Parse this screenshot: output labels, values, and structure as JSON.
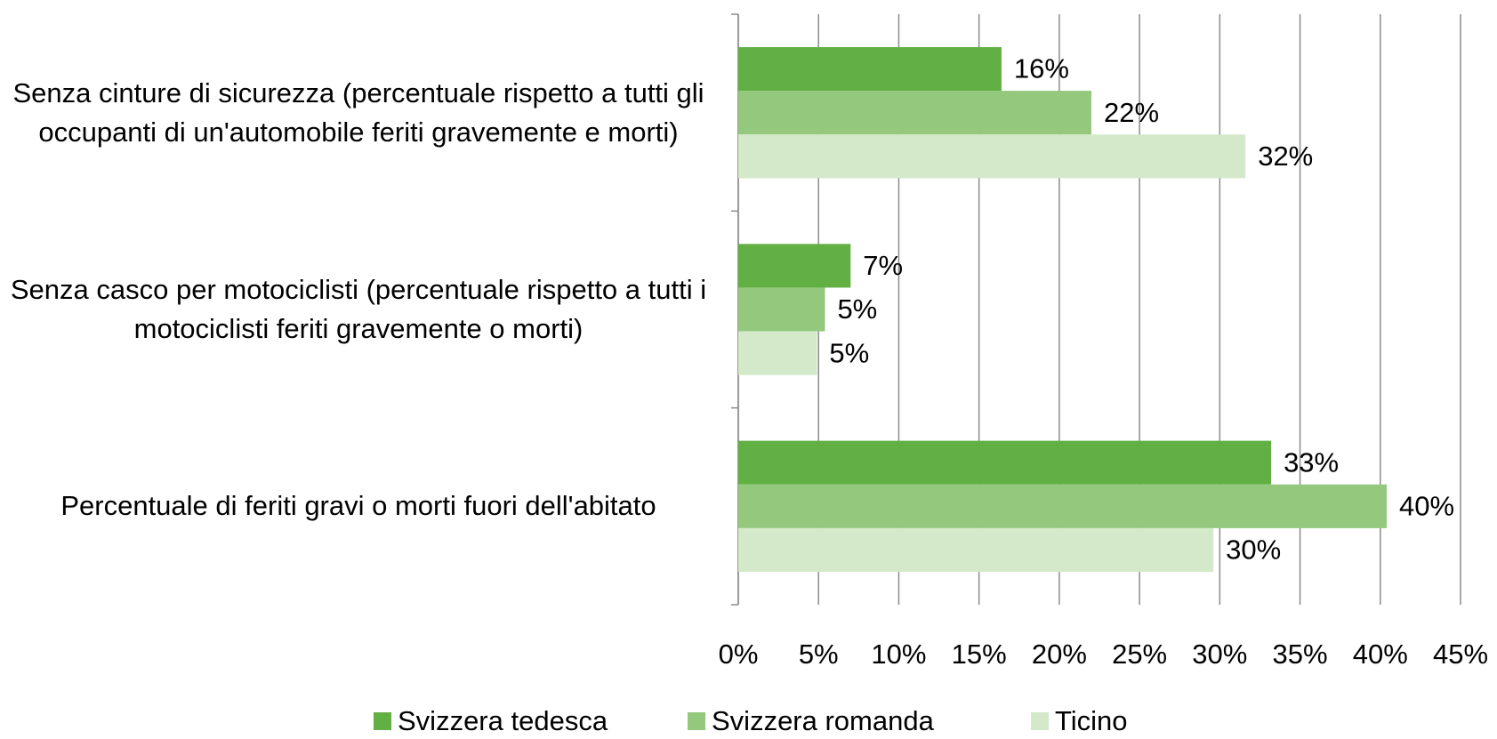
{
  "chart_data": {
    "type": "bar",
    "orientation": "horizontal",
    "categories": [
      "Senza cinture di sicurezza (percentuale rispetto a tutti gli occupanti di un'automobile feriti gravemente e morti)",
      "Senza casco per motociclisti (percentuale rispetto a tutti i motociclisti feriti gravemente o morti)",
      "Percentuale di feriti gravi o morti fuori dell'abitato"
    ],
    "series": [
      {
        "name": "Svizzera tedesca",
        "color": "#62b044",
        "values": [
          16.4,
          7,
          33.2
        ],
        "value_labels": [
          "16%",
          "7%",
          "33%"
        ]
      },
      {
        "name": "Svizzera romanda",
        "color": "#93c87d",
        "values": [
          22,
          5.4,
          40.4
        ],
        "value_labels": [
          "22%",
          "5%",
          "40%"
        ]
      },
      {
        "name": "Ticino",
        "color": "#d4e9ca",
        "values": [
          31.6,
          4.9,
          29.6
        ],
        "value_labels": [
          "32%",
          "5%",
          "30%"
        ]
      }
    ],
    "xlim": [
      0,
      45
    ],
    "xticks": [
      {
        "value": 0,
        "label": "0%"
      },
      {
        "value": 5,
        "label": "5%"
      },
      {
        "value": 10,
        "label": "10%"
      },
      {
        "value": 15,
        "label": "15%"
      },
      {
        "value": 20,
        "label": "20%"
      },
      {
        "value": 25,
        "label": "25%"
      },
      {
        "value": 30,
        "label": "30%"
      },
      {
        "value": 35,
        "label": "35%"
      },
      {
        "value": 40,
        "label": "40%"
      },
      {
        "value": 45,
        "label": "45%"
      }
    ],
    "grid": true,
    "legend": "bottom"
  }
}
